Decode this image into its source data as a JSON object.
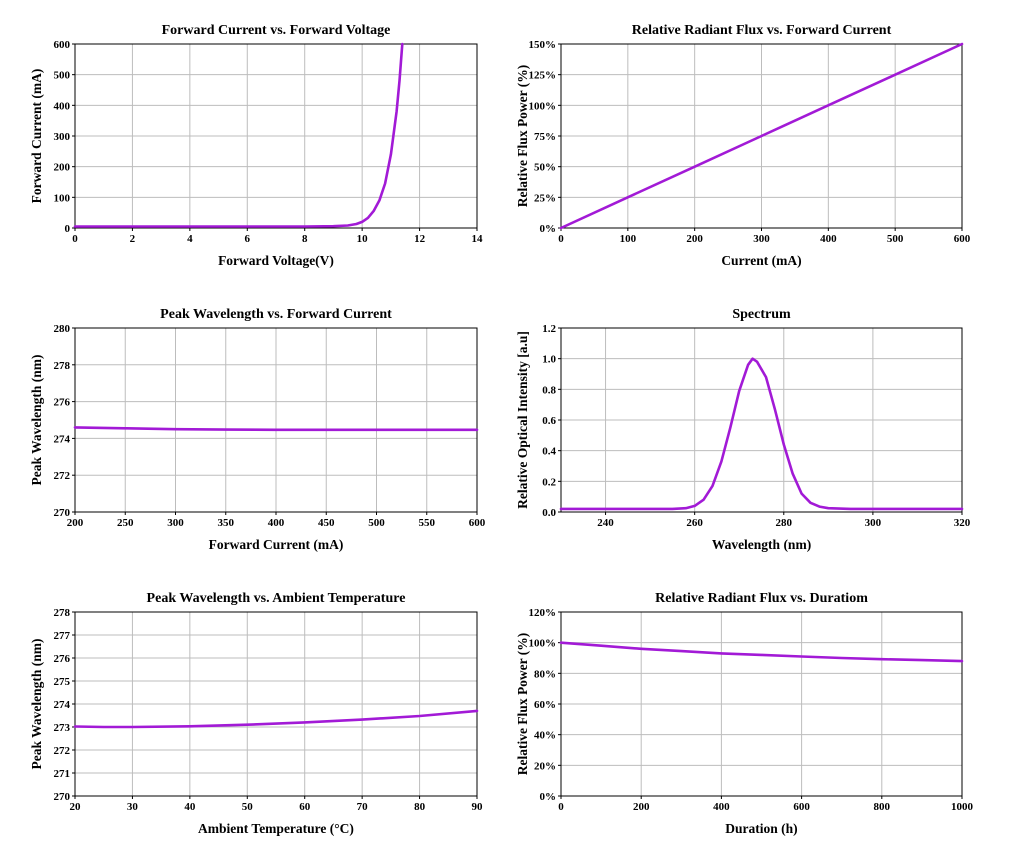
{
  "line_color": "#a21ad6",
  "chart_data": [
    {
      "type": "line",
      "title": "Forward Current vs. Forward Voltage",
      "xlabel": "Forward Voltage(V)",
      "ylabel": "Forward Current (mA)",
      "xlim": [
        0,
        14
      ],
      "ylim": [
        0,
        600
      ],
      "xticks": [
        "0",
        "2",
        "4",
        "6",
        "8",
        "10",
        "12",
        "14"
      ],
      "yticks": [
        "0",
        "100",
        "200",
        "300",
        "400",
        "500",
        "600"
      ],
      "grid": true,
      "series": [
        {
          "x": [
            0,
            2,
            4,
            6,
            8,
            9,
            9.5,
            9.8,
            10,
            10.2,
            10.4,
            10.6,
            10.8,
            11,
            11.2,
            11.3,
            11.4
          ],
          "y": [
            5,
            5,
            5,
            5,
            5,
            6,
            8,
            13,
            20,
            33,
            55,
            90,
            145,
            240,
            380,
            480,
            600
          ]
        }
      ]
    },
    {
      "type": "line",
      "title": "Relative Radiant Flux vs. Forward Current",
      "xlabel": "Current (mA)",
      "ylabel": "Relative Flux Power (%)",
      "xlim": [
        0,
        600
      ],
      "ylim": [
        0,
        150
      ],
      "xticks": [
        "0",
        "100",
        "200",
        "300",
        "400",
        "500",
        "600"
      ],
      "yticks": [
        "0%",
        "25%",
        "50%",
        "75%",
        "100%",
        "125%",
        "150%"
      ],
      "grid": true,
      "series": [
        {
          "x": [
            0,
            100,
            200,
            300,
            400,
            500,
            600
          ],
          "y": [
            0,
            25,
            50,
            75,
            100,
            125,
            150
          ]
        }
      ]
    },
    {
      "type": "line",
      "title": "Peak Wavelength vs. Forward Current",
      "xlabel": "Forward Current (mA)",
      "ylabel": "Peak Wavelength (nm)",
      "xlim": [
        200,
        600
      ],
      "ylim": [
        270,
        280
      ],
      "xticks": [
        "200",
        "250",
        "300",
        "350",
        "400",
        "450",
        "500",
        "550",
        "600"
      ],
      "yticks": [
        "270",
        "272",
        "274",
        "276",
        "278",
        "280"
      ],
      "grid": true,
      "series": [
        {
          "x": [
            200,
            250,
            300,
            350,
            400,
            450,
            500,
            550,
            600
          ],
          "y": [
            274.6,
            274.55,
            274.5,
            274.48,
            274.47,
            274.47,
            274.47,
            274.47,
            274.47
          ]
        }
      ]
    },
    {
      "type": "line",
      "title": "Spectrum",
      "xlabel": "Wavelength (nm)",
      "ylabel": "Relative Optical Intensity [a.u]",
      "xlim": [
        230,
        320
      ],
      "ylim": [
        0,
        1.2
      ],
      "xticks": [
        "240",
        "260",
        "280",
        "300",
        "320"
      ],
      "yticks": [
        "0.0",
        "0.2",
        "0.4",
        "0.6",
        "0.8",
        "1.0",
        "1.2"
      ],
      "grid": true,
      "series": [
        {
          "x": [
            230,
            240,
            250,
            255,
            258,
            260,
            262,
            264,
            266,
            268,
            270,
            272,
            273,
            274,
            276,
            278,
            280,
            282,
            284,
            286,
            288,
            290,
            295,
            300,
            310,
            320
          ],
          "y": [
            0.02,
            0.02,
            0.02,
            0.02,
            0.025,
            0.04,
            0.08,
            0.17,
            0.33,
            0.55,
            0.79,
            0.96,
            1.0,
            0.98,
            0.88,
            0.67,
            0.44,
            0.25,
            0.12,
            0.06,
            0.035,
            0.025,
            0.02,
            0.02,
            0.02,
            0.02
          ]
        }
      ]
    },
    {
      "type": "line",
      "title": "Peak Wavelength vs. Ambient Temperature",
      "xlabel": "Ambient Temperature (°C)",
      "ylabel": "Peak Wavelength (nm)",
      "xlim": [
        20,
        90
      ],
      "ylim": [
        270,
        278
      ],
      "xticks": [
        "20",
        "30",
        "40",
        "50",
        "60",
        "70",
        "80",
        "90"
      ],
      "yticks": [
        "270",
        "271",
        "272",
        "273",
        "274",
        "275",
        "276",
        "277",
        "278"
      ],
      "grid": true,
      "series": [
        {
          "x": [
            20,
            25,
            30,
            40,
            50,
            60,
            70,
            80,
            90
          ],
          "y": [
            273.02,
            273.0,
            273.0,
            273.03,
            273.1,
            273.2,
            273.32,
            273.48,
            273.7
          ]
        }
      ]
    },
    {
      "type": "line",
      "title": "Relative Radiant Flux vs. Duratiom",
      "xlabel": "Duration (h)",
      "ylabel": "Relative Flux Power (%)",
      "xlim": [
        0,
        1000
      ],
      "ylim": [
        0,
        120
      ],
      "xticks": [
        "0",
        "200",
        "400",
        "600",
        "800",
        "1000"
      ],
      "yticks": [
        "0%",
        "20%",
        "40%",
        "60%",
        "80%",
        "100%",
        "120%"
      ],
      "grid": true,
      "series": [
        {
          "x": [
            0,
            100,
            200,
            300,
            400,
            500,
            600,
            700,
            800,
            900,
            1000
          ],
          "y": [
            100,
            98,
            96,
            94.5,
            93,
            92,
            91,
            90,
            89.2,
            88.6,
            88
          ]
        }
      ]
    }
  ]
}
